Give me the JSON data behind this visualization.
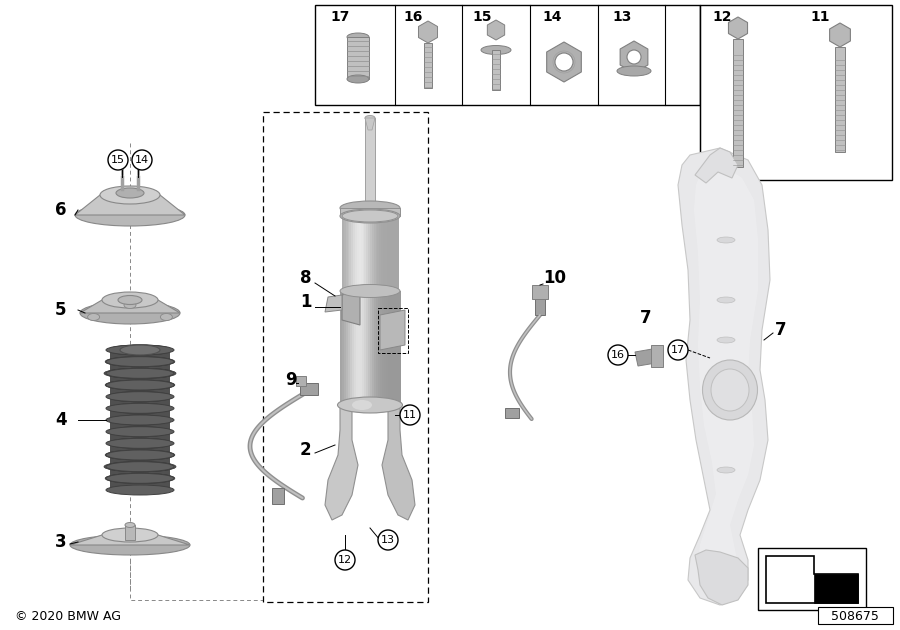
{
  "bg_color": "#ffffff",
  "copyright": "© 2020 BMW AG",
  "part_number": "508675",
  "label_fontsize": 11,
  "bold_label_fontsize": 13
}
